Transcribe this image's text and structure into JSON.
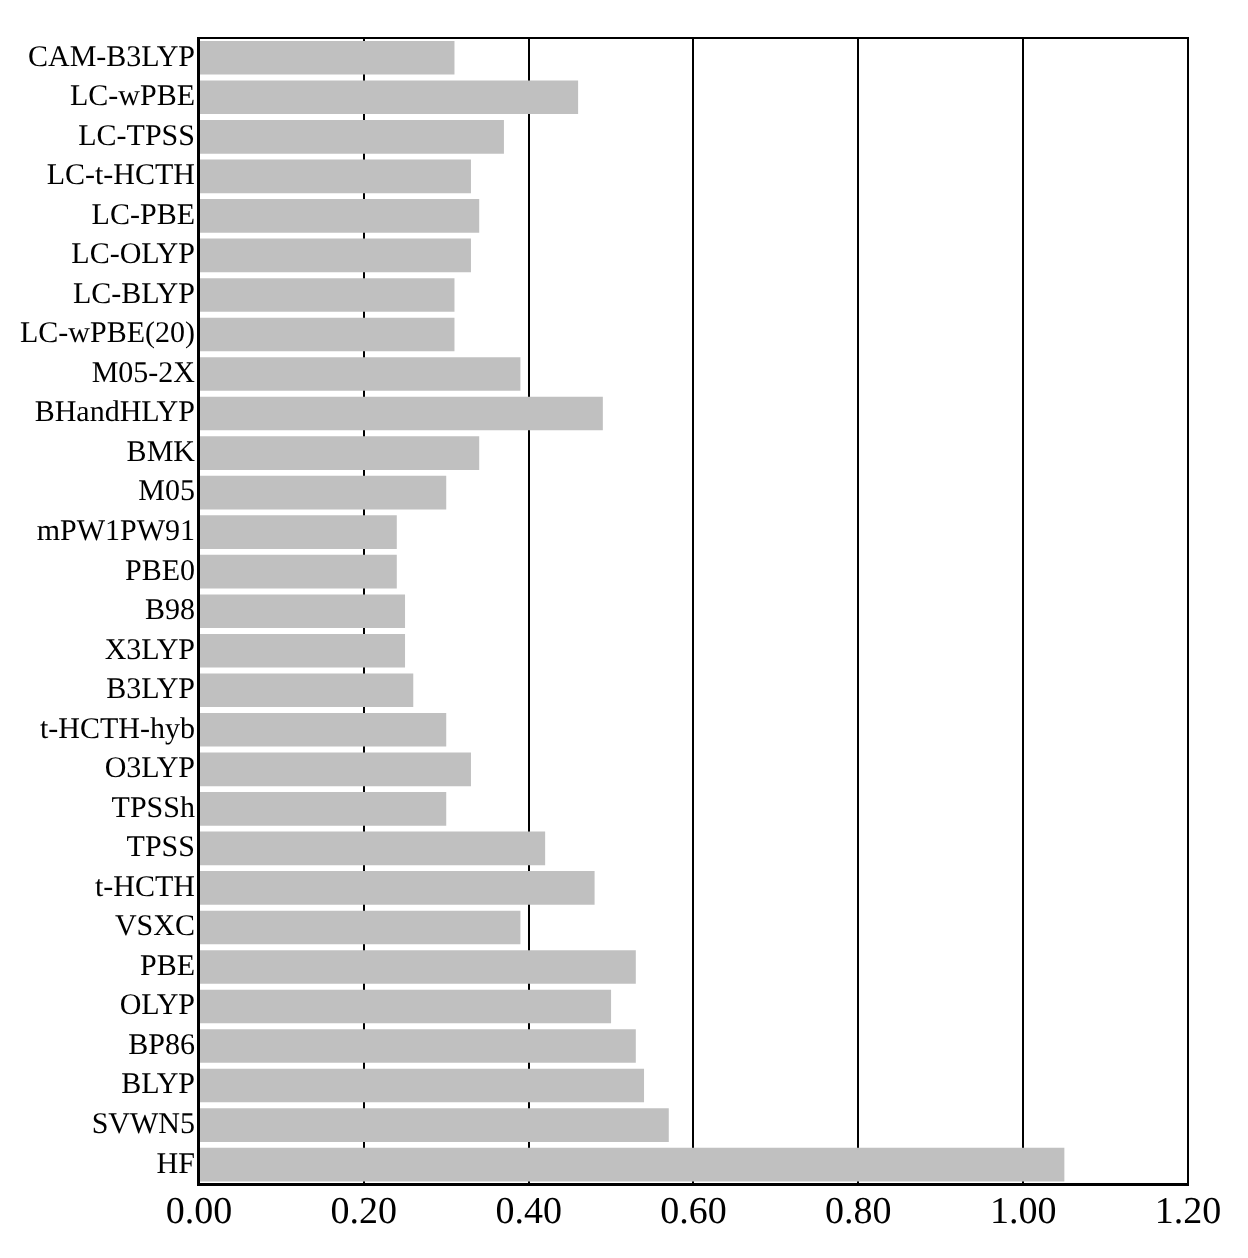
{
  "chart_data": {
    "type": "bar",
    "orientation": "horizontal",
    "categories": [
      "CAM-B3LYP",
      "LC-wPBE",
      "LC-TPSS",
      "LC-t-HCTH",
      "LC-PBE",
      "LC-OLYP",
      "LC-BLYP",
      "LC-wPBE(20)",
      "M05-2X",
      "BHandHLYP",
      "BMK",
      "M05",
      "mPW1PW91",
      "PBE0",
      "B98",
      "X3LYP",
      "B3LYP",
      "t-HCTH-hyb",
      "O3LYP",
      "TPSSh",
      "TPSS",
      "t-HCTH",
      "VSXC",
      "PBE",
      "OLYP",
      "BP86",
      "BLYP",
      "SVWN5",
      "HF"
    ],
    "values": [
      0.31,
      0.46,
      0.37,
      0.33,
      0.34,
      0.33,
      0.31,
      0.31,
      0.39,
      0.49,
      0.34,
      0.3,
      0.24,
      0.24,
      0.25,
      0.25,
      0.26,
      0.3,
      0.33,
      0.3,
      0.42,
      0.48,
      0.39,
      0.53,
      0.5,
      0.53,
      0.54,
      0.57,
      1.05
    ],
    "color": "#c0c0c0",
    "xlim": [
      0,
      1.2
    ],
    "xticks": [
      {
        "value": 0,
        "label": "0.00"
      },
      {
        "value": 0.2,
        "label": "0.20"
      },
      {
        "value": 0.4,
        "label": "0.40"
      },
      {
        "value": 0.6,
        "label": "0.60"
      },
      {
        "value": 0.8,
        "label": "0.80"
      },
      {
        "value": 1.0,
        "label": "1.00"
      },
      {
        "value": 1.2,
        "label": "1.20"
      }
    ],
    "grid": "x"
  }
}
